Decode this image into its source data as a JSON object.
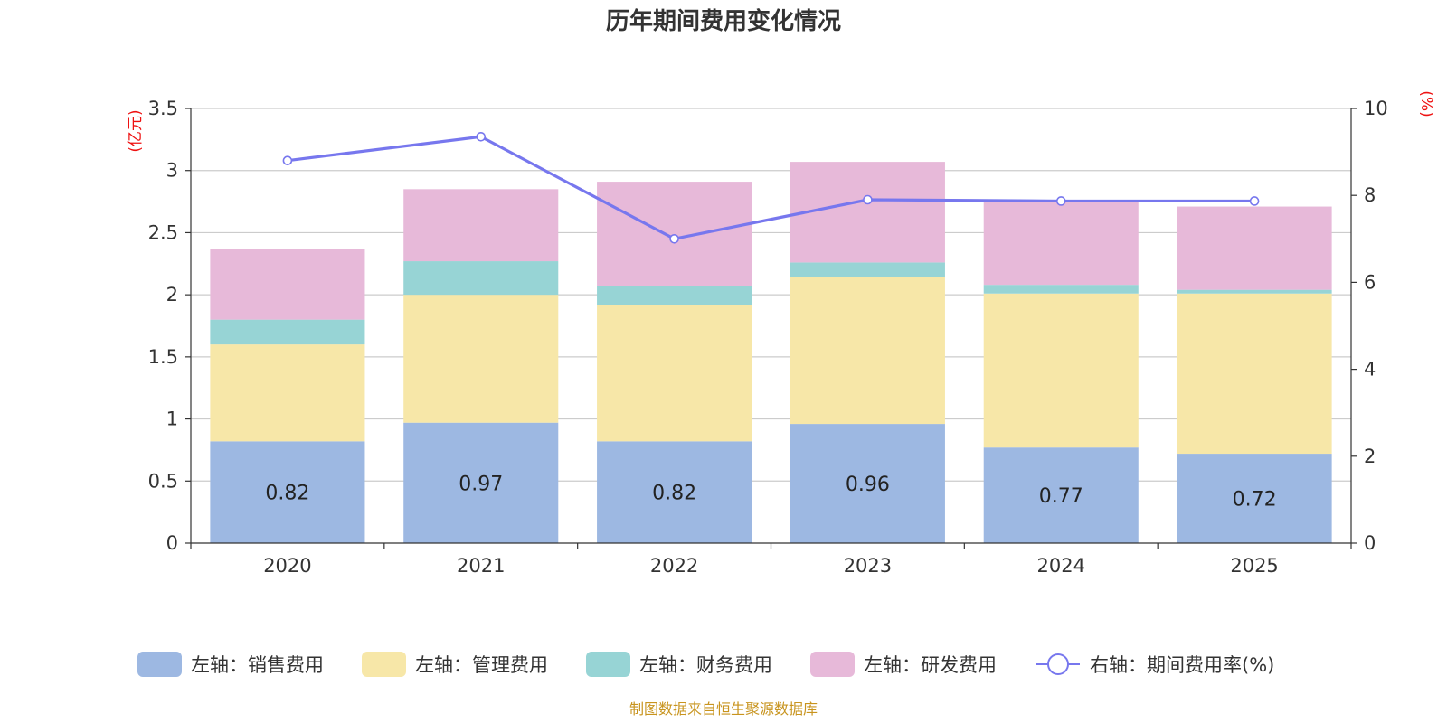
{
  "chart_data": {
    "type": "bar",
    "title": "历年期间费用变化情况",
    "categories": [
      "2020",
      "2021",
      "2022",
      "2023",
      "2024",
      "2025"
    ],
    "left_axis": {
      "unit": "(亿元)",
      "ylim": [
        0,
        3.5
      ],
      "ticks": [
        "0",
        "0.5",
        "1",
        "1.5",
        "2",
        "2.5",
        "3",
        "3.5"
      ]
    },
    "right_axis": {
      "unit": "(%)",
      "ylim": [
        0,
        10
      ],
      "ticks": [
        "0",
        "2",
        "4",
        "6",
        "8",
        "10"
      ]
    },
    "series": [
      {
        "name": "左轴：销售费用",
        "axis": "left",
        "kind": "bar",
        "color": "#9db8e2",
        "values": [
          0.82,
          0.97,
          0.82,
          0.96,
          0.77,
          0.72
        ],
        "labels": [
          "0.82",
          "0.97",
          "0.82",
          "0.96",
          "0.77",
          "0.72"
        ]
      },
      {
        "name": "左轴：管理费用",
        "axis": "left",
        "kind": "bar",
        "color": "#f7e7a8",
        "values": [
          0.78,
          1.03,
          1.1,
          1.18,
          1.24,
          1.29
        ]
      },
      {
        "name": "左轴：财务费用",
        "axis": "left",
        "kind": "bar",
        "color": "#97d4d5",
        "values": [
          0.2,
          0.27,
          0.15,
          0.12,
          0.07,
          0.03
        ]
      },
      {
        "name": "左轴：研发费用",
        "axis": "left",
        "kind": "bar",
        "color": "#e7b9d9",
        "values": [
          0.57,
          0.58,
          0.84,
          0.81,
          0.67,
          0.67
        ]
      },
      {
        "name": "右轴：期间费用率(%)",
        "axis": "right",
        "kind": "line",
        "color": "#7777ee",
        "values": [
          8.8,
          9.35,
          7.0,
          7.9,
          7.87,
          7.87
        ]
      }
    ],
    "grid": true,
    "legend_position": "bottom"
  },
  "footer": {
    "source": "制图数据来自恒生聚源数据库"
  }
}
